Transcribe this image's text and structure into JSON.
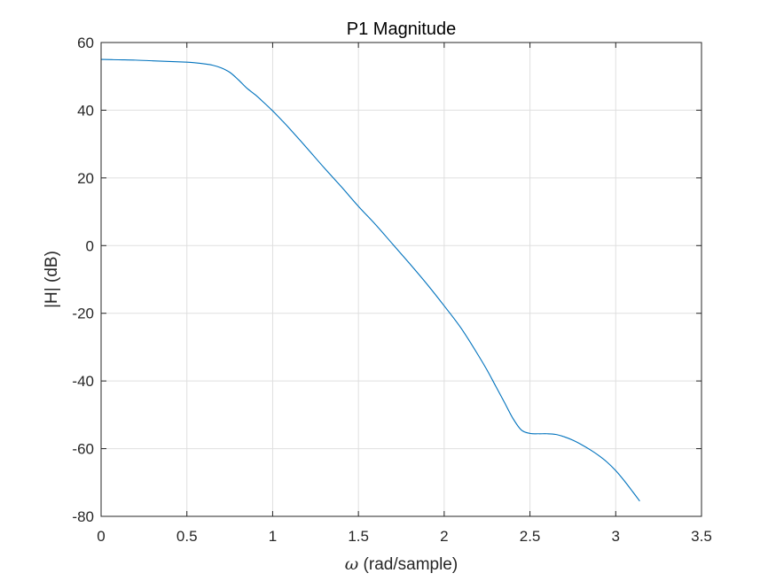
{
  "chart_data": {
    "type": "line",
    "title": "P1 Magnitude",
    "xlabel_symbol": "ω",
    "xlabel_text": " (rad/sample)",
    "ylabel": "|H| (dB)",
    "xlim": [
      0,
      3.5
    ],
    "ylim": [
      -80,
      60
    ],
    "xticks": [
      0,
      0.5,
      1,
      1.5,
      2,
      2.5,
      3,
      3.5
    ],
    "xtick_labels": [
      "0",
      "0.5",
      "1",
      "1.5",
      "2",
      "2.5",
      "3",
      "3.5"
    ],
    "yticks": [
      -80,
      -60,
      -40,
      -20,
      0,
      20,
      40,
      60
    ],
    "ytick_labels": [
      "-80",
      "-60",
      "-40",
      "-20",
      "0",
      "20",
      "40",
      "60"
    ],
    "grid": true,
    "series": [
      {
        "name": "P1",
        "color": "#0072bd",
        "x": [
          0,
          0.1,
          0.2,
          0.3,
          0.4,
          0.5,
          0.55,
          0.6,
          0.65,
          0.7,
          0.75,
          0.8,
          0.85,
          0.9,
          0.95,
          1.0,
          1.05,
          1.1,
          1.2,
          1.3,
          1.4,
          1.5,
          1.6,
          1.7,
          1.8,
          1.9,
          2.0,
          2.1,
          2.2,
          2.25,
          2.3,
          2.35,
          2.4,
          2.45,
          2.5,
          2.55,
          2.6,
          2.65,
          2.7,
          2.75,
          2.8,
          2.85,
          2.9,
          2.95,
          3.0,
          3.05,
          3.1,
          3.14
        ],
        "y": [
          55,
          54.9,
          54.8,
          54.6,
          54.4,
          54.2,
          54.0,
          53.7,
          53.3,
          52.5,
          51.2,
          49.0,
          46.5,
          44.5,
          42.2,
          39.8,
          37.2,
          34.5,
          28.8,
          23.0,
          17.4,
          11.6,
          6.2,
          0.4,
          -5.4,
          -11.4,
          -17.8,
          -24.5,
          -32.5,
          -36.8,
          -41.5,
          -46.2,
          -51.0,
          -54.5,
          -55.5,
          -55.6,
          -55.6,
          -55.8,
          -56.5,
          -57.5,
          -58.8,
          -60.3,
          -62.0,
          -64.0,
          -66.5,
          -69.5,
          -72.8,
          -75.5
        ]
      }
    ]
  }
}
